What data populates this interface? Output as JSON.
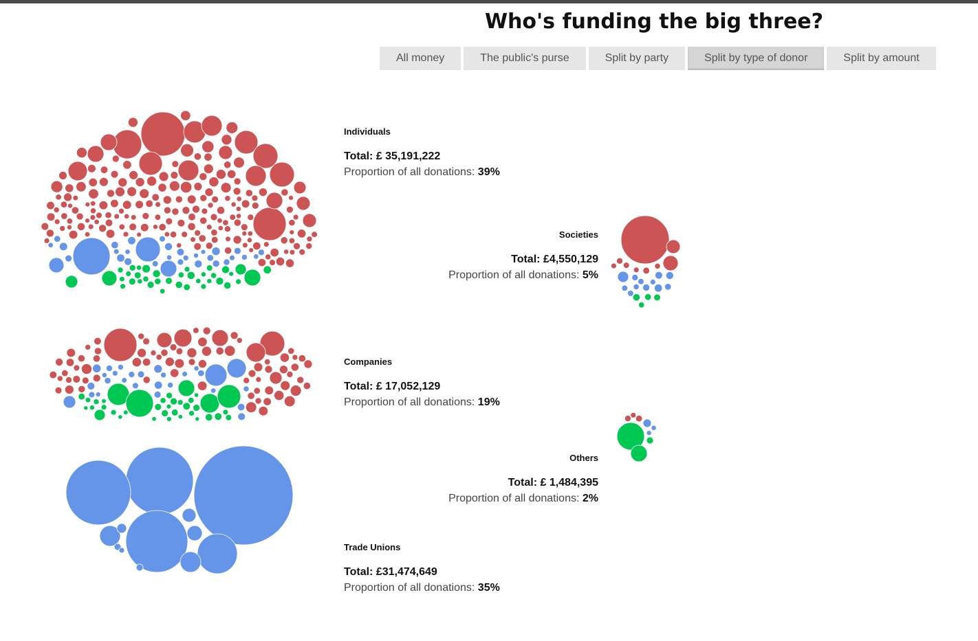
{
  "title": "Who's funding the big three?",
  "tabs": [
    {
      "label": "All money",
      "active": false
    },
    {
      "label": "The public's purse",
      "active": false
    },
    {
      "label": "Split by party",
      "active": false
    },
    {
      "label": "Split by type of donor",
      "active": true
    },
    {
      "label": "Split by amount",
      "active": false
    }
  ],
  "colors": {
    "red": "#cd5454",
    "blue": "#6495e8",
    "green": "#00c853"
  },
  "groups": [
    {
      "name": "Individuals",
      "total_label": "Total:",
      "total_value": "£ 35,191,222",
      "prop_label": "Proportion of all donations:",
      "prop_value": "39%"
    },
    {
      "name": "Societies",
      "total_label": "Total:",
      "total_value": "£4,550,129",
      "prop_label": "Proportion of all donations:",
      "prop_value": "5%"
    },
    {
      "name": "Companies",
      "total_label": "Total:",
      "total_value": "£ 17,052,129",
      "prop_label": "Proportion of all donations:",
      "prop_value": "19%"
    },
    {
      "name": "Others",
      "total_label": "Total:",
      "total_value": "£ 1,484,395",
      "prop_label": "Proportion of all donations:",
      "prop_value": "2%"
    },
    {
      "name": "Trade Unions",
      "total_label": "Total:",
      "total_value": "£31,474,649",
      "prop_label": "Proportion of all donations:",
      "prop_value": "35%"
    }
  ],
  "chart_data": {
    "type": "bubble",
    "title": "Who's funding the big three?",
    "series_colors": [
      "#cd5454",
      "#6495e8",
      "#00c853"
    ],
    "categories": [
      "Individuals",
      "Societies",
      "Companies",
      "Others",
      "Trade Unions"
    ],
    "totals": [
      35191222,
      4550129,
      17052129,
      1484395,
      31474649
    ],
    "proportions_pct": [
      39,
      5,
      19,
      2,
      35
    ]
  }
}
